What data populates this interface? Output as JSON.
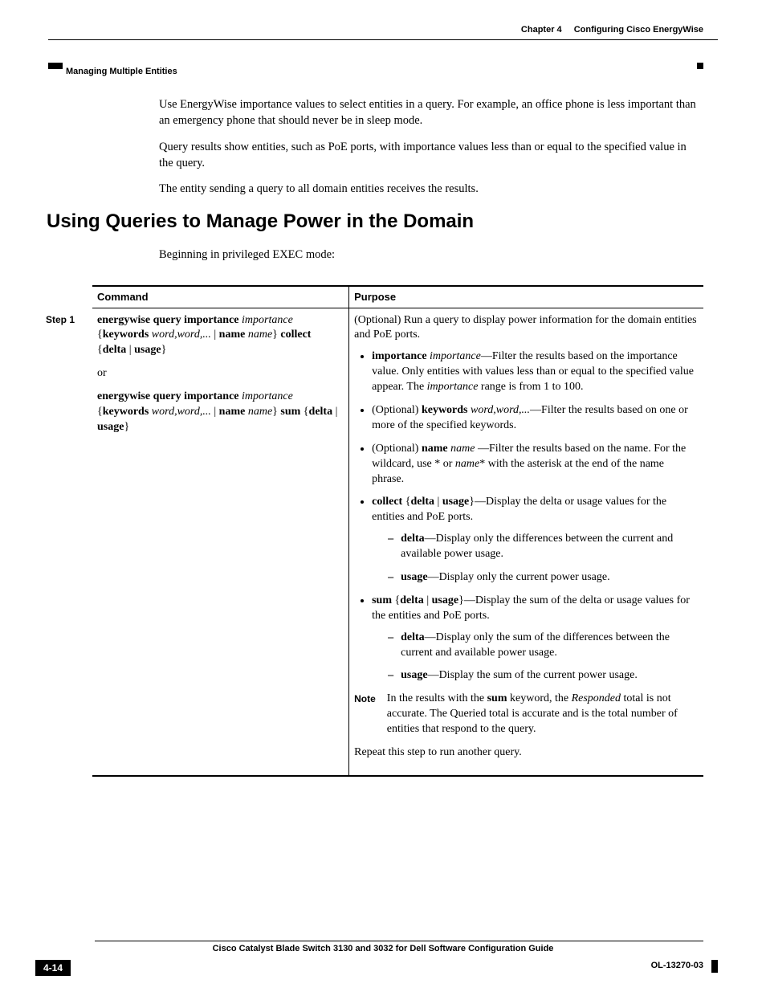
{
  "header": {
    "chapter_label": "Chapter 4",
    "chapter_title": "Configuring Cisco EnergyWise",
    "section": "Managing Multiple Entities"
  },
  "intro": {
    "p1": "Use EnergyWise importance values to select entities in a query. For example, an office phone is less important than an emergency phone that should never be in sleep mode.",
    "p2": "Query results show entities, such as PoE ports, with importance values less than or equal to the specified value in the query.",
    "p3": "The entity sending a query to all domain entities receives the results."
  },
  "heading": "Using Queries to Manage Power in the Domain",
  "intro2": "Beginning in privileged EXEC mode:",
  "table": {
    "head_command": "Command",
    "head_purpose": "Purpose",
    "step_label": "Step 1",
    "command": {
      "l1a": "energywise query importance",
      "l1b": "importance",
      "l2a": "keywords",
      "l2b": "word,word,...",
      "l2c": "name",
      "l2d": "name",
      "l2e": "collect",
      "l3a": "delta",
      "l3b": "usage",
      "or": "or",
      "l4a": "energywise query importance",
      "l4b": "importance",
      "l5a": "keywords",
      "l5b": "word,word,...",
      "l5c": "name",
      "l5d": "name",
      "l5e": "sum",
      "l6a": "delta",
      "l6b": "usage"
    },
    "purpose": {
      "p1": "(Optional) Run a query to display power information for the domain entities and PoE ports.",
      "b1_pre": "importance",
      "b1_i": "importance",
      "b1_post": "—Filter the results based on the importance value. Only entities with values less than or equal to the specified value appear. The ",
      "b1_i2": "importance",
      "b1_post2": " range is from 1 to 100.",
      "b2_pre": "(Optional) ",
      "b2_b": "keywords",
      "b2_i": "word,word,...",
      "b2_post": "—Filter the results based on one or more of the specified keywords.",
      "b3_pre": "(Optional) ",
      "b3_b": "name",
      "b3_i": "name",
      "b3_post": " —Filter the results based on the name. For the wildcard, use * or ",
      "b3_i2": "name",
      "b3_post2": "* with the asterisk at the end of the name phrase.",
      "b4_b": "collect",
      "b4_b2": "delta",
      "b4_b3": "usage",
      "b4_post": "—Display the delta or usage values for the entities and PoE ports.",
      "b4s1_b": "delta",
      "b4s1": "—Display only the differences between the current and available power usage.",
      "b4s2_b": "usage",
      "b4s2": "—Display only the current power usage.",
      "b5_b": "sum",
      "b5_b2": "delta",
      "b5_b3": "usage",
      "b5_post": "—Display the sum of the delta or usage values for the entities and PoE ports.",
      "b5s1_b": "delta",
      "b5s1": "—Display only the sum of the differences between the current and available power usage.",
      "b5s2_b": "usage",
      "b5s2": "—Display the sum of the current power usage.",
      "note_label": "Note",
      "note_pre": "In the results with the ",
      "note_b": "sum",
      "note_mid": " keyword, the ",
      "note_i": "Responded",
      "note_post": " total is not accurate. The Queried total is accurate and is the total number of entities that respond to the query.",
      "repeat": "Repeat this step to run another query."
    }
  },
  "footer": {
    "title": "Cisco Catalyst Blade Switch 3130 and 3032 for Dell Software Configuration Guide",
    "page": "4-14",
    "docid": "OL-13270-03"
  }
}
